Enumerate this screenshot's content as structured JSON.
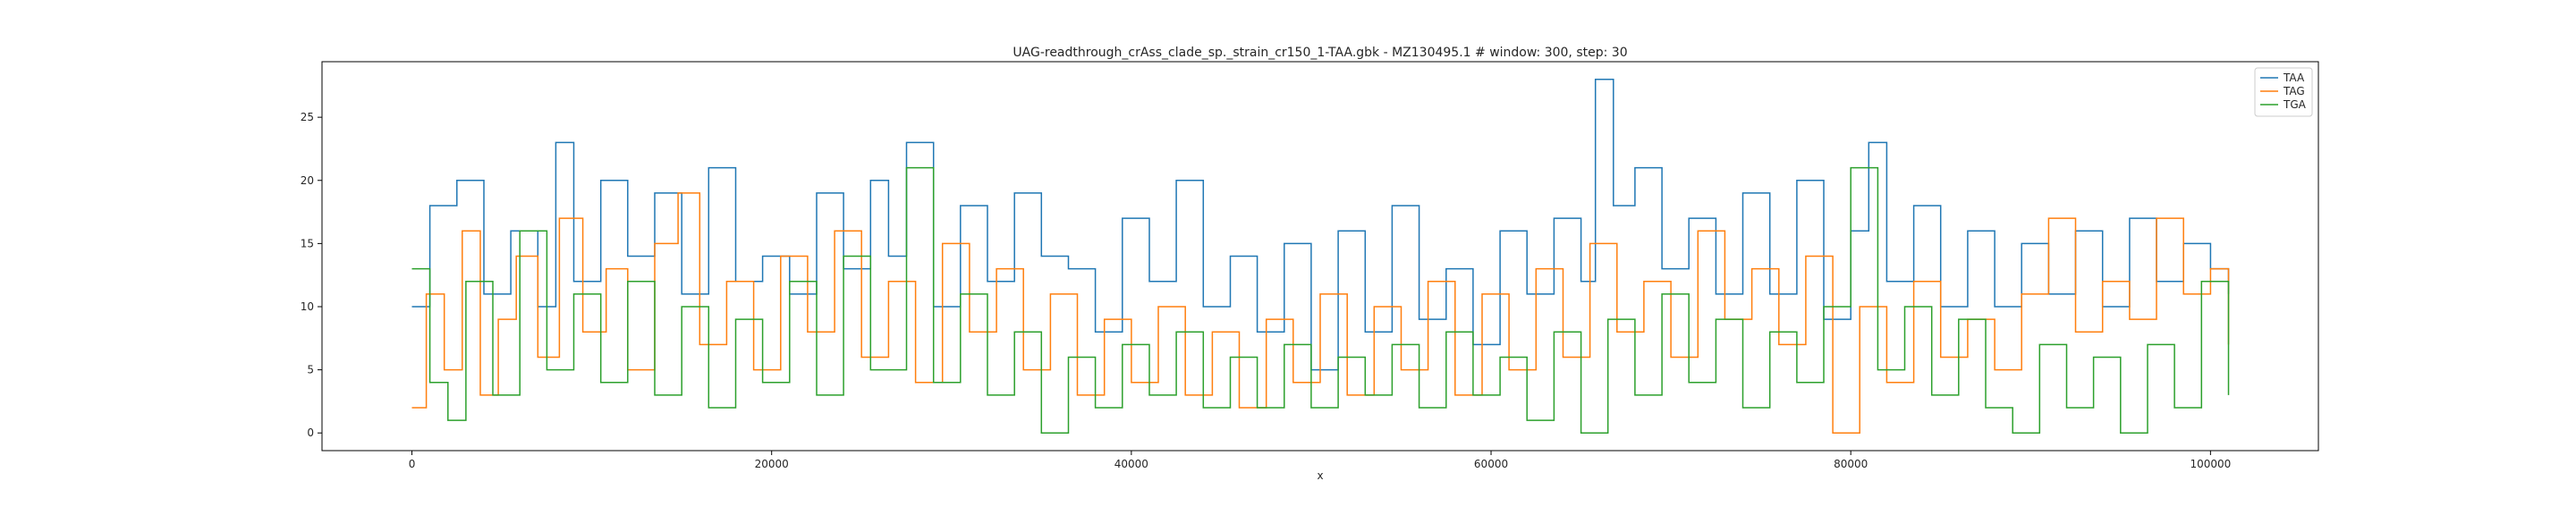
{
  "chart_data": {
    "type": "line",
    "title": "UAG-readthrough_crAss_clade_sp._strain_cr150_1-TAA.gbk - MZ130495.1 # window: 300, step: 30",
    "xlabel": "x",
    "ylabel": "",
    "xlim": [
      -5000,
      106000
    ],
    "ylim": [
      -1.4,
      29.4
    ],
    "x_ticks": [
      0,
      20000,
      40000,
      60000,
      80000,
      100000
    ],
    "y_ticks": [
      0,
      5,
      10,
      15,
      20,
      25
    ],
    "grid": false,
    "legend_position": "top-right",
    "series": [
      {
        "name": "TAA",
        "color": "#1f77b4",
        "x": [
          0,
          1000,
          2500,
          4000,
          5500,
          7000,
          8000,
          9000,
          10500,
          12000,
          13500,
          15000,
          16500,
          18000,
          19500,
          21000,
          22500,
          24000,
          25500,
          26500,
          27500,
          29000,
          30500,
          32000,
          33500,
          35000,
          36500,
          38000,
          39500,
          41000,
          42500,
          44000,
          45500,
          47000,
          48500,
          50000,
          51500,
          53000,
          54500,
          56000,
          57500,
          59000,
          60500,
          62000,
          63500,
          65000,
          65800,
          66800,
          68000,
          69500,
          71000,
          72500,
          74000,
          75500,
          77000,
          78500,
          80000,
          81000,
          82000,
          83500,
          85000,
          86500,
          88000,
          89500,
          91000,
          92500,
          94000,
          95500,
          97000,
          98500,
          100000,
          101000
        ],
        "values": [
          10,
          18,
          20,
          11,
          16,
          10,
          23,
          12,
          20,
          14,
          19,
          11,
          21,
          12,
          14,
          11,
          19,
          13,
          20,
          14,
          23,
          10,
          18,
          12,
          19,
          14,
          13,
          8,
          17,
          12,
          20,
          10,
          14,
          8,
          15,
          5,
          16,
          8,
          18,
          9,
          13,
          7,
          16,
          11,
          17,
          12,
          28,
          18,
          21,
          13,
          17,
          11,
          19,
          11,
          20,
          9,
          16,
          23,
          12,
          18,
          10,
          16,
          10,
          15,
          11,
          16,
          10,
          17,
          12,
          15,
          13,
          11
        ]
      },
      {
        "name": "TAG",
        "color": "#ff7f0e",
        "x": [
          0,
          800,
          1800,
          2800,
          3800,
          4800,
          5800,
          7000,
          8200,
          9500,
          10800,
          12000,
          13500,
          14800,
          16000,
          17500,
          19000,
          20500,
          22000,
          23500,
          25000,
          26500,
          28000,
          29500,
          31000,
          32500,
          34000,
          35500,
          37000,
          38500,
          40000,
          41500,
          43000,
          44500,
          46000,
          47500,
          49000,
          50500,
          52000,
          53500,
          55000,
          56500,
          58000,
          59500,
          61000,
          62500,
          64000,
          65500,
          67000,
          68500,
          70000,
          71500,
          73000,
          74500,
          76000,
          77500,
          79000,
          80500,
          82000,
          83500,
          85000,
          86500,
          88000,
          89500,
          91000,
          92500,
          94000,
          95500,
          97000,
          98500,
          100000,
          101000
        ],
        "values": [
          2,
          11,
          5,
          16,
          3,
          9,
          14,
          6,
          17,
          8,
          13,
          5,
          15,
          19,
          7,
          12,
          5,
          14,
          8,
          16,
          6,
          12,
          4,
          15,
          8,
          13,
          5,
          11,
          3,
          9,
          4,
          10,
          3,
          8,
          2,
          9,
          4,
          11,
          3,
          10,
          5,
          12,
          3,
          11,
          5,
          13,
          6,
          15,
          8,
          12,
          6,
          16,
          9,
          13,
          7,
          14,
          0,
          10,
          4,
          12,
          6,
          9,
          5,
          11,
          17,
          8,
          12,
          9,
          17,
          11,
          13,
          7
        ]
      },
      {
        "name": "TGA",
        "color": "#2ca02c",
        "x": [
          0,
          1000,
          2000,
          3000,
          4500,
          6000,
          7500,
          9000,
          10500,
          12000,
          13500,
          15000,
          16500,
          18000,
          19500,
          21000,
          22500,
          24000,
          25500,
          27500,
          29000,
          30500,
          32000,
          33500,
          35000,
          36500,
          38000,
          39500,
          41000,
          42500,
          44000,
          45500,
          47000,
          48500,
          50000,
          51500,
          53000,
          54500,
          56000,
          57500,
          59000,
          60500,
          62000,
          63500,
          65000,
          66500,
          68000,
          69500,
          71000,
          72500,
          74000,
          75500,
          77000,
          78500,
          80000,
          81500,
          83000,
          84500,
          86000,
          87500,
          89000,
          90500,
          92000,
          93500,
          95000,
          96500,
          98000,
          99500,
          101000
        ],
        "values": [
          13,
          4,
          1,
          12,
          3,
          16,
          5,
          11,
          4,
          12,
          3,
          10,
          2,
          9,
          4,
          12,
          3,
          14,
          5,
          21,
          4,
          11,
          3,
          8,
          0,
          6,
          2,
          7,
          3,
          8,
          2,
          6,
          2,
          7,
          2,
          6,
          3,
          7,
          2,
          8,
          3,
          6,
          1,
          8,
          0,
          9,
          3,
          11,
          4,
          9,
          2,
          8,
          4,
          10,
          21,
          5,
          10,
          3,
          9,
          2,
          0,
          7,
          2,
          6,
          0,
          7,
          2,
          12,
          3
        ]
      }
    ]
  }
}
